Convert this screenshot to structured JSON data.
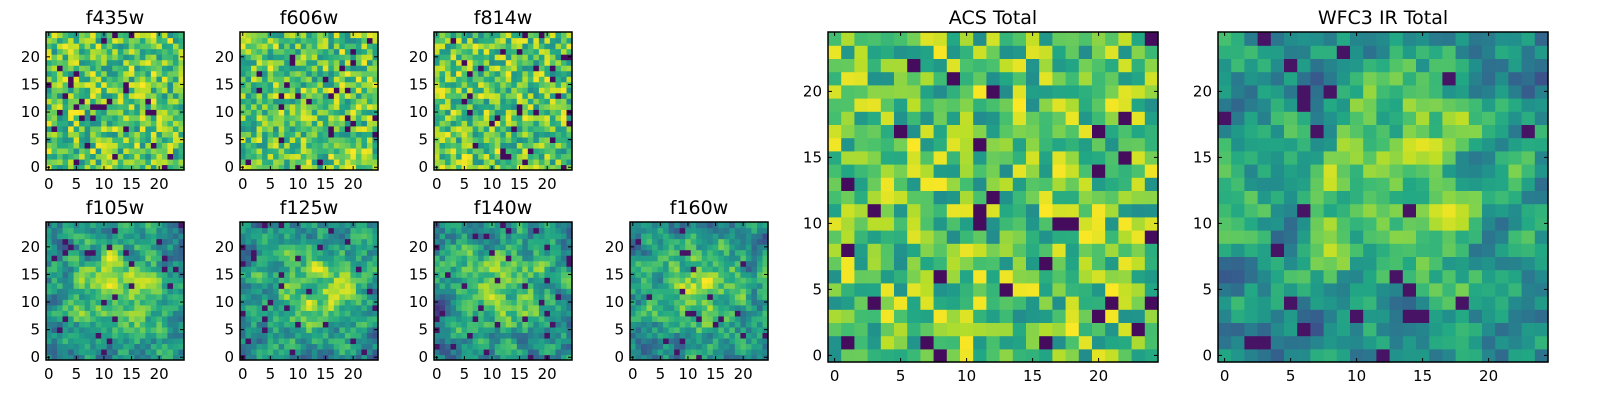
{
  "chart_data": [
    {
      "type": "heatmap",
      "title": "f435w",
      "xlim": [
        0,
        24
      ],
      "ylim": [
        0,
        24
      ],
      "xticks": [
        0,
        5,
        10,
        15,
        20
      ],
      "yticks": [
        0,
        5,
        10,
        15,
        20
      ],
      "grid": false,
      "colormap": "viridis",
      "texture": "fine-noise",
      "seed": 11
    },
    {
      "type": "heatmap",
      "title": "f606w",
      "xlim": [
        0,
        24
      ],
      "ylim": [
        0,
        24
      ],
      "xticks": [
        0,
        5,
        10,
        15,
        20
      ],
      "yticks": [
        0,
        5,
        10,
        15,
        20
      ],
      "grid": false,
      "colormap": "viridis",
      "texture": "fine-noise",
      "seed": 23
    },
    {
      "type": "heatmap",
      "title": "f814w",
      "xlim": [
        0,
        24
      ],
      "ylim": [
        0,
        24
      ],
      "xticks": [
        0,
        5,
        10,
        15,
        20
      ],
      "yticks": [
        0,
        5,
        10,
        15,
        20
      ],
      "grid": false,
      "colormap": "viridis",
      "texture": "fine-noise",
      "seed": 37
    },
    {
      "type": "heatmap",
      "title": "f105w",
      "xlim": [
        0,
        24
      ],
      "ylim": [
        0,
        24
      ],
      "xticks": [
        0,
        5,
        10,
        15,
        20
      ],
      "yticks": [
        0,
        5,
        10,
        15,
        20
      ],
      "grid": false,
      "colormap": "viridis",
      "texture": "smooth-blob",
      "seed": 41
    },
    {
      "type": "heatmap",
      "title": "f125w",
      "xlim": [
        0,
        24
      ],
      "ylim": [
        0,
        24
      ],
      "xticks": [
        0,
        5,
        10,
        15,
        20
      ],
      "yticks": [
        0,
        5,
        10,
        15,
        20
      ],
      "grid": false,
      "colormap": "viridis",
      "texture": "smooth-blob",
      "seed": 53
    },
    {
      "type": "heatmap",
      "title": "f140w",
      "xlim": [
        0,
        24
      ],
      "ylim": [
        0,
        24
      ],
      "xticks": [
        0,
        5,
        10,
        15,
        20
      ],
      "yticks": [
        0,
        5,
        10,
        15,
        20
      ],
      "grid": false,
      "colormap": "viridis",
      "texture": "smooth-blob",
      "seed": 67
    },
    {
      "type": "heatmap",
      "title": "f160w",
      "xlim": [
        0,
        24
      ],
      "ylim": [
        0,
        24
      ],
      "xticks": [
        0,
        5,
        10,
        15,
        20
      ],
      "yticks": [
        0,
        5,
        10,
        15,
        20
      ],
      "grid": false,
      "colormap": "viridis",
      "texture": "smooth-blob",
      "seed": 79
    },
    {
      "type": "heatmap",
      "title": "ACS Total",
      "xlim": [
        0,
        24
      ],
      "ylim": [
        0,
        24
      ],
      "xticks": [
        0,
        5,
        10,
        15,
        20
      ],
      "yticks": [
        0,
        5,
        10,
        15,
        20
      ],
      "grid": false,
      "colormap": "viridis",
      "texture": "fine-noise",
      "seed": 83
    },
    {
      "type": "heatmap",
      "title": "WFC3 IR Total",
      "xlim": [
        0,
        24
      ],
      "ylim": [
        0,
        24
      ],
      "xticks": [
        0,
        5,
        10,
        15,
        20
      ],
      "yticks": [
        0,
        5,
        10,
        15,
        20
      ],
      "grid": false,
      "colormap": "viridis",
      "texture": "smooth-blob",
      "seed": 97
    }
  ]
}
